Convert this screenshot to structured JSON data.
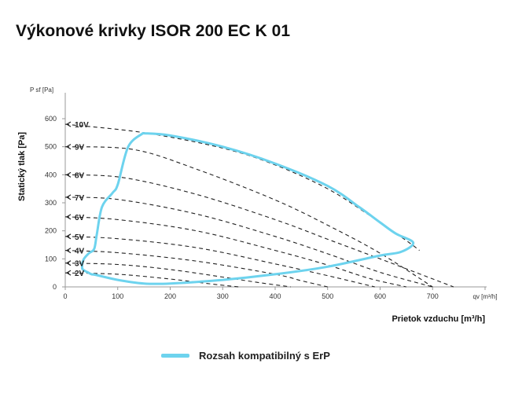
{
  "title": "Výkonové krivky ISOR 200 EC K 01",
  "chart_data": {
    "type": "line",
    "title": "Výkonové krivky ISOR 200 EC K 01",
    "xlabel": "Prietok vzduchu [m³/h]",
    "x_axis_end_label": "qv [m³/h]",
    "ylabel": "Statický tlak [Pa]",
    "y_axis_top_label": "P sf [Pa]",
    "xlim": [
      0,
      800
    ],
    "ylim": [
      0,
      600
    ],
    "x_ticks": [
      0,
      100,
      200,
      300,
      400,
      500,
      600,
      700
    ],
    "y_ticks": [
      0,
      100,
      200,
      300,
      400,
      500,
      600
    ],
    "grid": false,
    "legend_position": "bottom",
    "colors": {
      "erp": "#6dd3ee",
      "curve": "#222222",
      "axis": "#999999"
    },
    "series": [
      {
        "name": "10V",
        "x": [
          0,
          150,
          300,
          400,
          500,
          580,
          650,
          675
        ],
        "y": [
          580,
          550,
          495,
          435,
          350,
          255,
          165,
          130
        ]
      },
      {
        "name": "9V",
        "x": [
          0,
          130,
          250,
          400,
          500,
          600,
          700
        ],
        "y": [
          500,
          490,
          420,
          310,
          220,
          120,
          0
        ]
      },
      {
        "name": "8V",
        "x": [
          0,
          110,
          250,
          400,
          500,
          600,
          740
        ],
        "y": [
          400,
          390,
          330,
          240,
          170,
          100,
          0
        ]
      },
      {
        "name": "7V",
        "x": [
          0,
          100,
          250,
          400,
          500,
          600,
          700
        ],
        "y": [
          320,
          312,
          260,
          180,
          118,
          52,
          0
        ]
      },
      {
        "name": "6V",
        "x": [
          0,
          100,
          250,
          400,
          500,
          580,
          650
        ],
        "y": [
          250,
          240,
          200,
          130,
          78,
          30,
          0
        ]
      },
      {
        "name": "5V",
        "x": [
          0,
          100,
          250,
          400,
          500,
          590
        ],
        "y": [
          180,
          172,
          140,
          82,
          40,
          0
        ]
      },
      {
        "name": "4V",
        "x": [
          0,
          100,
          250,
          400,
          450,
          500
        ],
        "y": [
          130,
          122,
          92,
          45,
          22,
          0
        ]
      },
      {
        "name": "3V",
        "x": [
          0,
          100,
          200,
          300,
          370,
          430
        ],
        "y": [
          85,
          80,
          62,
          35,
          15,
          0
        ]
      },
      {
        "name": "2V",
        "x": [
          0,
          100,
          200,
          280,
          330
        ],
        "y": [
          50,
          45,
          28,
          10,
          0
        ]
      }
    ],
    "erp_range": {
      "name": "Rozsah kompatibilný s ErP",
      "x": [
        148,
        200,
        300,
        400,
        500,
        560,
        600,
        630,
        663,
        640,
        600,
        500,
        400,
        300,
        200,
        150,
        100,
        60,
        50,
        45,
        35,
        32,
        35,
        45,
        55,
        60,
        70,
        90,
        100,
        120,
        148
      ],
      "y": [
        548,
        540,
        500,
        440,
        360,
        285,
        230,
        190,
        158,
        125,
        112,
        72,
        45,
        25,
        12,
        12,
        25,
        42,
        45,
        50,
        60,
        70,
        98,
        120,
        135,
        185,
        285,
        335,
        365,
        500,
        548
      ]
    }
  }
}
